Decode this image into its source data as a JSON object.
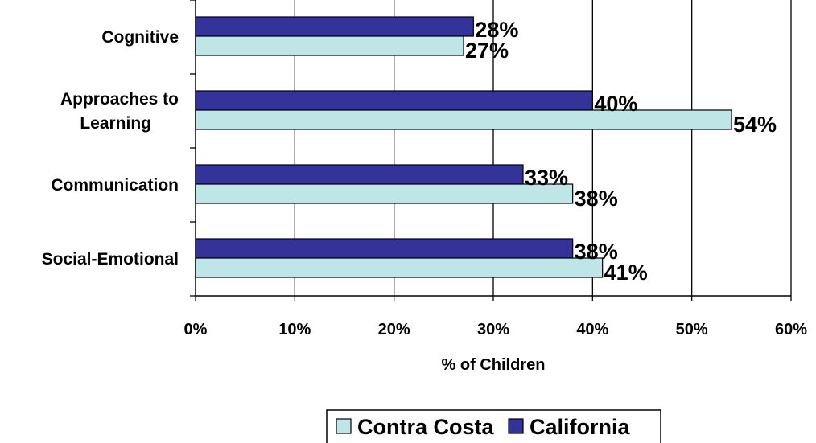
{
  "chart_data": {
    "type": "bar",
    "orientation": "horizontal",
    "categories": [
      "Cognitive",
      "Approaches to Learning",
      "Communication",
      "Social-Emotional"
    ],
    "category_lines": [
      [
        "Cognitive"
      ],
      [
        "Approaches to",
        "Learning"
      ],
      [
        "Communication"
      ],
      [
        "Social-Emotional"
      ]
    ],
    "series": [
      {
        "name": "California",
        "values": [
          28,
          40,
          33,
          38
        ],
        "labels": [
          "28%",
          "40%",
          "33%",
          "38%"
        ],
        "color": "#333399"
      },
      {
        "name": "Contra Costa",
        "values": [
          27,
          54,
          38,
          41
        ],
        "labels": [
          "27%",
          "54%",
          "38%",
          "41%"
        ],
        "color": "#bfe6e6"
      }
    ],
    "xlabel": "% of Children",
    "xlim": [
      0,
      60
    ],
    "xticks": [
      0,
      10,
      20,
      30,
      40,
      50,
      60
    ],
    "xtick_labels": [
      "0%",
      "10%",
      "20%",
      "30%",
      "40%",
      "50%",
      "60%"
    ],
    "grid": "vertical",
    "legend": {
      "position": "bottom",
      "entries": [
        {
          "name": "Contra Costa",
          "color": "#bfe6e6"
        },
        {
          "name": "California",
          "color": "#333399"
        }
      ]
    }
  }
}
